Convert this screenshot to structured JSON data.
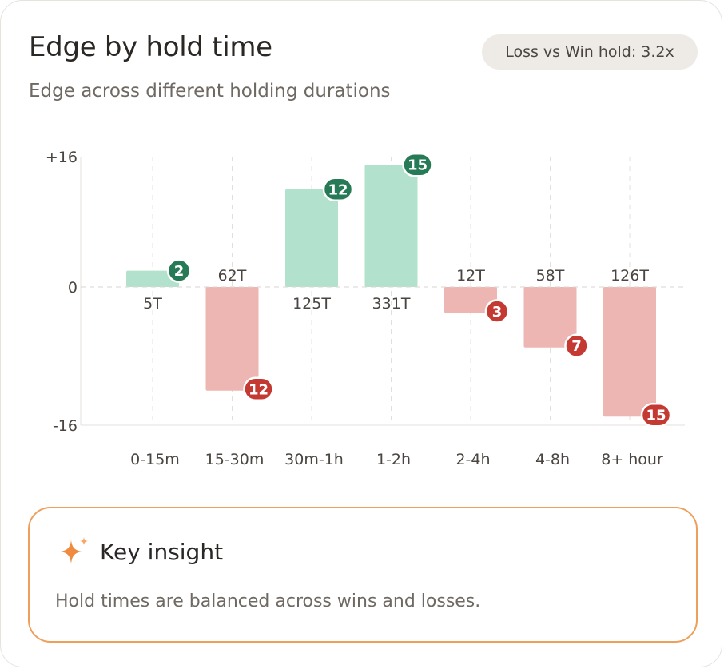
{
  "header": {
    "title": "Edge by hold time",
    "subtitle": "Edge across different holding durations",
    "badge": "Loss vs Win hold: 3.2x"
  },
  "chart_data": {
    "type": "bar",
    "categories": [
      "0-15m",
      "15-30m",
      "30m-1h",
      "1-2h",
      "2-4h",
      "4-8h",
      "8+ hour"
    ],
    "values": [
      2,
      -12,
      12,
      15,
      -3,
      -7,
      -15
    ],
    "value_labels": [
      "2",
      "12",
      "12",
      "15",
      "3",
      "7",
      "15"
    ],
    "trade_counts": [
      "5T",
      "62T",
      "125T",
      "331T",
      "12T",
      "58T",
      "126T"
    ],
    "ylim": [
      -16,
      16
    ],
    "y_ticks": [
      "+16",
      "0",
      "-16"
    ],
    "y_tick_values": [
      16,
      0,
      -16
    ],
    "grid": true,
    "colors": {
      "positive_bar": "#b2e2cd",
      "negative_bar": "#eeb6b2",
      "positive_badge": "#277a56",
      "negative_badge": "#c43a33"
    }
  },
  "insight": {
    "title": "Key insight",
    "text": "Hold times are balanced across wins and losses.",
    "icon": "sparkle-icon",
    "accent": "#ef9f5c"
  }
}
